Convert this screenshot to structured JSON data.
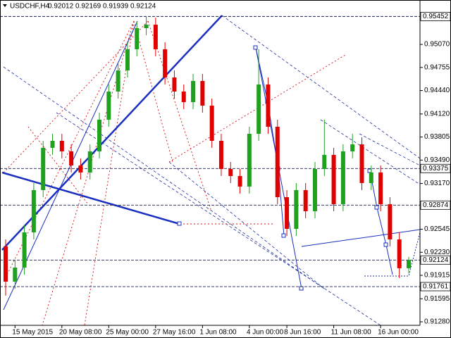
{
  "chart_data": {
    "type": "candlestick",
    "title": "USDCHF,H4",
    "quote": {
      "open": 0.92012,
      "high": 0.92169,
      "low": 0.91939,
      "close": 0.92124
    },
    "categories": [
      null,
      "15 May 2015",
      null,
      null,
      null,
      null,
      "20 May 08:00",
      null,
      null,
      null,
      null,
      "25 May 00:00",
      null,
      null,
      null,
      null,
      "27 May 16:00",
      null,
      null,
      null,
      null,
      "1 Jun 08:00",
      null,
      null,
      null,
      null,
      "4 Jun 00:00",
      null,
      null,
      null,
      "8 Jun 16:00",
      null,
      null,
      null,
      null,
      "11 Jun 08:00",
      null,
      null,
      null,
      null,
      "16 Jun 00:00",
      null,
      null,
      null
    ],
    "open": [
      0.9231,
      0.91829,
      0.92021,
      0.92502,
      0.9308,
      0.93657,
      0.93753,
      0.93609,
      0.93416,
      0.9332,
      0.93609,
      0.94042,
      0.94426,
      0.94715,
      0.95004,
      0.95292,
      0.9534,
      0.95004,
      0.94619,
      0.94426,
      0.94282,
      0.94571,
      0.94234,
      0.93753,
      0.93368,
      0.93272,
      0.93128,
      0.93849,
      0.94523,
      0.93945,
      0.92983,
      0.9255,
      0.9308,
      0.92791,
      0.93368,
      0.93561,
      0.92887,
      0.93609,
      0.93705,
      0.93176,
      0.9332,
      0.92887,
      0.92406,
      0.92012
    ],
    "high": [
      0.92406,
      0.92117,
      0.92598,
      0.93176,
      0.93753,
      0.93849,
      0.93849,
      0.93705,
      0.93512,
      0.93705,
      0.94138,
      0.94522,
      0.94811,
      0.951,
      0.95388,
      0.95452,
      0.95436,
      0.951,
      0.94715,
      0.94522,
      0.94667,
      0.94667,
      0.9433,
      0.93849,
      0.93464,
      0.93368,
      0.93945,
      0.95004,
      0.94619,
      0.94041,
      0.93079,
      0.93176,
      0.93176,
      0.93464,
      0.94042,
      0.93657,
      0.93705,
      0.93849,
      0.93801,
      0.93416,
      0.93416,
      0.92983,
      0.92502,
      0.92169
    ],
    "low": [
      0.91637,
      0.91733,
      0.91925,
      0.92406,
      0.92984,
      0.93561,
      0.93513,
      0.9332,
      0.93224,
      0.93224,
      0.93513,
      0.93946,
      0.9433,
      0.94619,
      0.94908,
      0.95196,
      0.94908,
      0.94523,
      0.9433,
      0.94186,
      0.94186,
      0.94138,
      0.93657,
      0.93272,
      0.93176,
      0.93032,
      0.93032,
      0.93753,
      0.93849,
      0.92887,
      0.92454,
      0.92454,
      0.92695,
      0.92695,
      0.93272,
      0.92791,
      0.92791,
      0.93513,
      0.9308,
      0.9308,
      0.92791,
      0.9231,
      0.91877,
      0.91939
    ],
    "close": [
      0.91829,
      0.92021,
      0.92502,
      0.9308,
      0.93657,
      0.93753,
      0.93609,
      0.93416,
      0.9332,
      0.93609,
      0.94042,
      0.94426,
      0.94715,
      0.95004,
      0.95292,
      0.9534,
      0.95004,
      0.94619,
      0.94426,
      0.94282,
      0.94571,
      0.94234,
      0.93753,
      0.93368,
      0.93272,
      0.93128,
      0.93849,
      0.94523,
      0.93945,
      0.92983,
      0.9255,
      0.9308,
      0.92791,
      0.93368,
      0.93561,
      0.92887,
      0.93609,
      0.93705,
      0.93176,
      0.9332,
      0.92887,
      0.92406,
      0.92012,
      0.92124
    ],
    "up_color": "#1fa01f",
    "down_color": "#e00000",
    "ylim": [
      0.91232,
      0.95677
    ],
    "yticks": [
      {
        "value": 0.9507,
        "label": "0.95070"
      },
      0.94755,
      {
        "value": 0.9444,
        "label": "0.94440"
      },
      {
        "value": 0.9412,
        "label": "0.94120"
      },
      0.93805,
      {
        "value": 0.9349,
        "label": "0.93490"
      },
      {
        "value": 0.9317,
        "label": "0.93170"
      },
      0.92545,
      {
        "value": 0.9223,
        "label": "0.92230"
      },
      0.91915,
      0.91595,
      {
        "value": 0.9128,
        "label": "0.91280"
      }
    ],
    "levels": [
      0.95452,
      0.93375,
      0.92874,
      0.92124,
      0.91761
    ]
  }
}
